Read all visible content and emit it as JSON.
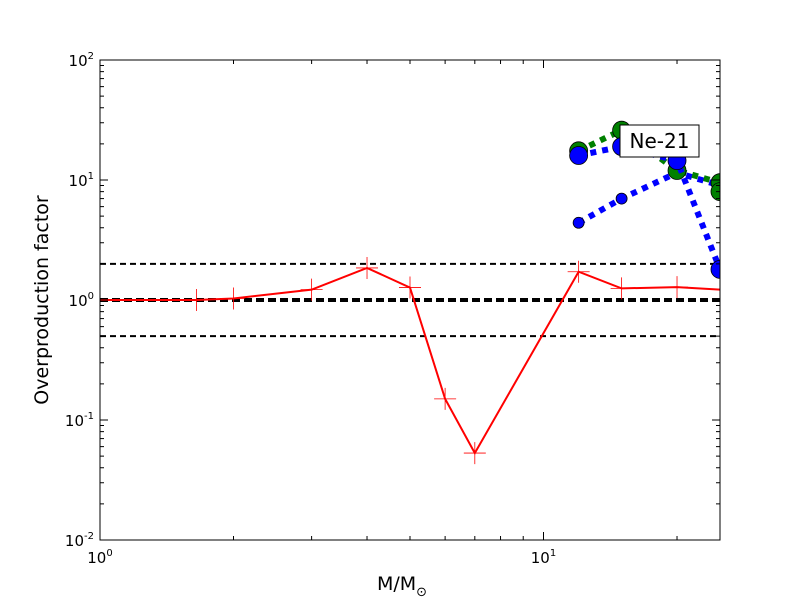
{
  "chart_data": {
    "type": "line",
    "title": "",
    "xlabel": "M/M",
    "xlabel_symbol": "⊙",
    "ylabel": "Overproduction factor",
    "xscale": "log",
    "yscale": "log",
    "xlim": [
      1,
      25
    ],
    "ylim": [
      0.01,
      100
    ],
    "x_ticks": [
      {
        "value": 1,
        "base": "10",
        "exp": "0"
      },
      {
        "value": 10,
        "base": "10",
        "exp": "1"
      }
    ],
    "y_ticks": [
      {
        "value": 0.01,
        "base": "10",
        "exp": "-2"
      },
      {
        "value": 0.1,
        "base": "10",
        "exp": "-1"
      },
      {
        "value": 1,
        "base": "10",
        "exp": "0"
      },
      {
        "value": 10,
        "base": "10",
        "exp": "1"
      },
      {
        "value": 100,
        "base": "10",
        "exp": "2"
      }
    ],
    "reference_lines": [
      {
        "y": 2.0,
        "style": "dashed",
        "width": 2
      },
      {
        "y": 1.0,
        "style": "dashed",
        "width": 4
      },
      {
        "y": 0.5,
        "style": "dashed",
        "width": 2
      }
    ],
    "annotation": "Ne-21",
    "grid": false,
    "legend": "none",
    "series": [
      {
        "color": "#ff0000",
        "line_style": "solid",
        "marker": "plus",
        "points": [
          {
            "x": 1.0,
            "y": 1.0
          },
          {
            "x": 1.65,
            "y": 1.0
          },
          {
            "x": 2.0,
            "y": 1.03
          },
          {
            "x": 3.0,
            "y": 1.22
          },
          {
            "x": 4.0,
            "y": 1.85
          },
          {
            "x": 5.0,
            "y": 1.27
          },
          {
            "x": 6.0,
            "y": 0.15
          },
          {
            "x": 7.0,
            "y": 0.053
          },
          {
            "x": 12.0,
            "y": 1.72
          },
          {
            "x": 15.0,
            "y": 1.25
          },
          {
            "x": 20.0,
            "y": 1.28
          },
          {
            "x": 25.0,
            "y": 1.22
          }
        ]
      },
      {
        "color": "#0000ff",
        "line_style": "dotted",
        "marker": "circle-small",
        "points": [
          {
            "x": 12.0,
            "y": 4.4
          },
          {
            "x": 15.0,
            "y": 7.0
          },
          {
            "x": 20.0,
            "y": 11.5
          },
          {
            "x": 25.0,
            "y": 9.0
          }
        ]
      },
      {
        "color": "#008000",
        "line_style": "dotted",
        "marker": "circle-large",
        "points": [
          {
            "x": 12.0,
            "y": 17.5
          },
          {
            "x": 15.0,
            "y": 26.0
          },
          {
            "x": 20.0,
            "y": 12.0
          },
          {
            "x": 25.0,
            "y": 9.5
          },
          {
            "x": 25.0,
            "y": 8.0
          }
        ]
      },
      {
        "color": "#0000ff",
        "line_style": "dotted",
        "marker": "circle-large",
        "points": [
          {
            "x": 12.0,
            "y": 16.0
          },
          {
            "x": 15.0,
            "y": 19.0
          },
          {
            "x": 20.0,
            "y": 14.5
          },
          {
            "x": 25.0,
            "y": 1.8
          }
        ]
      }
    ]
  }
}
